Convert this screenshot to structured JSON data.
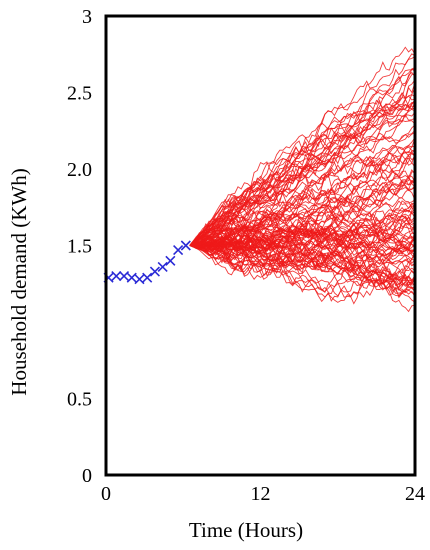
{
  "chart_data": {
    "type": "line",
    "title": "",
    "xlabel": "Time (Hours)",
    "ylabel": "Household demand (KWh)",
    "xlim": [
      0,
      24
    ],
    "ylim": [
      0,
      3
    ],
    "x_ticks": [
      0,
      12,
      24
    ],
    "y_ticks": [
      {
        "value": 0,
        "label": "0"
      },
      {
        "value": 0.5,
        "label": "0.5"
      },
      {
        "value": 1.5,
        "label": "1.5"
      },
      {
        "value": 2.0,
        "label": "2.0"
      },
      {
        "value": 2.5,
        "label": "2.5"
      },
      {
        "value": 3,
        "label": "3"
      }
    ],
    "grid": false,
    "series": [
      {
        "kind": "observed",
        "marker": "x",
        "color": "#2b2bd6",
        "x": [
          0.2,
          0.8,
          1.4,
          2.0,
          2.6,
          3.2,
          3.8,
          4.4,
          5.0,
          5.6,
          6.2
        ],
        "y": [
          1.29,
          1.3,
          1.3,
          1.29,
          1.28,
          1.29,
          1.33,
          1.36,
          1.4,
          1.47,
          1.5
        ]
      },
      {
        "kind": "forecast-ensemble",
        "color": "#ee1a1a",
        "start_x": 6.5,
        "start_y": 1.5,
        "end_x": 24,
        "count": 110,
        "end_y_min": 1.2,
        "end_y_max": 2.7,
        "end_y_median": 1.85
      }
    ]
  }
}
